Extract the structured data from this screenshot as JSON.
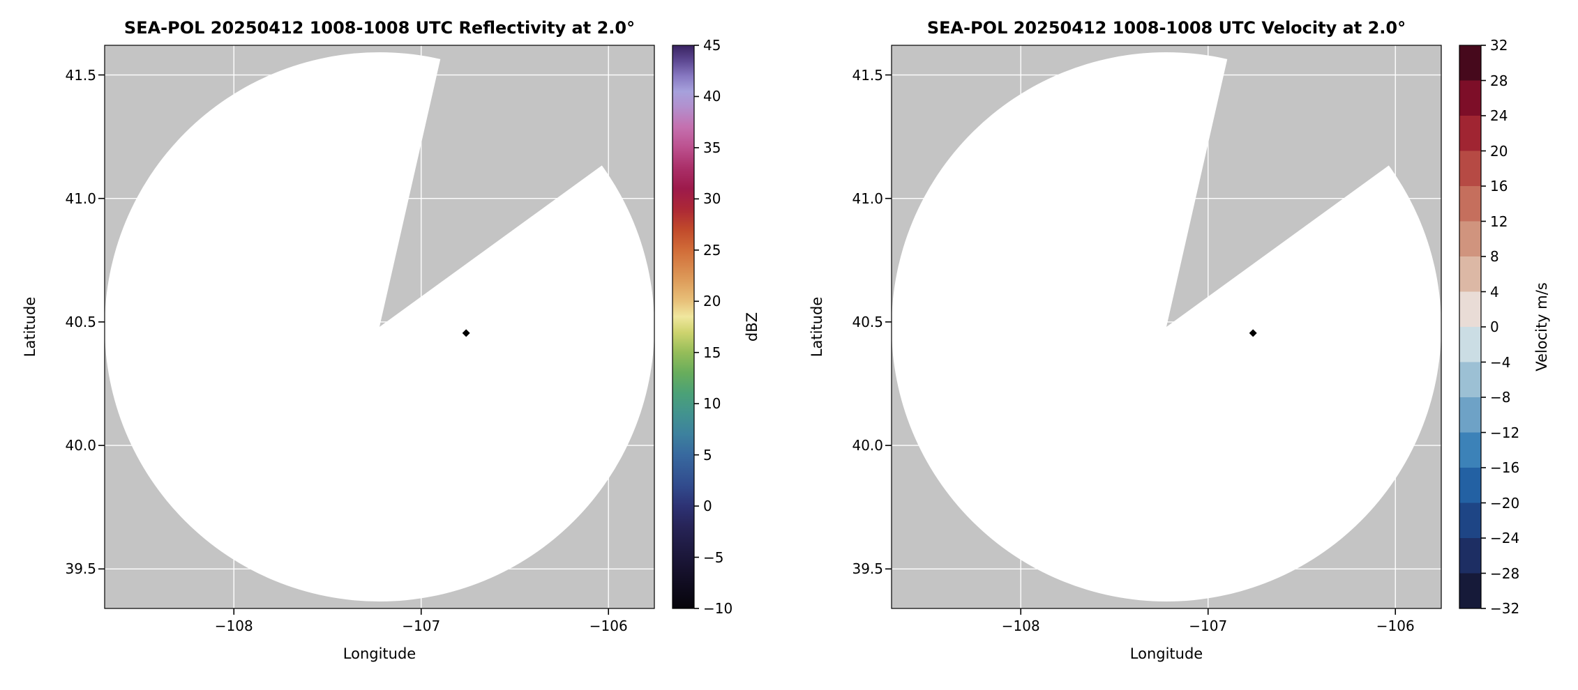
{
  "figure": {
    "background": "#ffffff"
  },
  "chart_data": [
    {
      "type": "heatmap",
      "variant": "radar-ppi",
      "title": "SEA-POL 20250412 1008-1008 UTC Reflectivity at 2.0°",
      "xlabel": "Longitude",
      "ylabel": "Latitude",
      "xlim": [
        -108.69,
        -105.755
      ],
      "ylim": [
        39.34,
        41.62
      ],
      "xticks": [
        -108,
        -107,
        -106
      ],
      "yticks": [
        41.5,
        41.0,
        40.5,
        40.0,
        39.5
      ],
      "grid": true,
      "values": "no echoes rendered - scan coverage area is blank (white)",
      "scan": {
        "center_lon": -107.2225,
        "center_lat": 40.48,
        "radius_deg_lon": 1.4675,
        "missing_sector_azimuth_deg": [
          12.8,
          54.0
        ],
        "no_data_color": "#c4c4c4",
        "scan_area_color": "#ffffff"
      },
      "marker": {
        "lon": -106.76,
        "lat": 40.455,
        "color": "#000000",
        "shape": "diamond"
      },
      "colors": {
        "grid": "#ffffff",
        "ticks": "#000000"
      },
      "colorbar": {
        "label": "dBZ",
        "vmin": -10,
        "vmax": 45,
        "ticks": [
          -10,
          -5,
          0,
          5,
          10,
          15,
          20,
          25,
          30,
          35,
          40,
          45
        ],
        "style": "gradient",
        "stops": [
          {
            "v": -10,
            "c": "#06040a"
          },
          {
            "v": -6,
            "c": "#17122f"
          },
          {
            "v": -2,
            "c": "#272457"
          },
          {
            "v": 0,
            "c": "#2d3274"
          },
          {
            "v": 2,
            "c": "#314b8d"
          },
          {
            "v": 5,
            "c": "#38699f"
          },
          {
            "v": 7,
            "c": "#3d819e"
          },
          {
            "v": 9,
            "c": "#42938f"
          },
          {
            "v": 11,
            "c": "#4ba177"
          },
          {
            "v": 13,
            "c": "#68ad5c"
          },
          {
            "v": 15,
            "c": "#95bd59"
          },
          {
            "v": 17,
            "c": "#cfd46f"
          },
          {
            "v": 18.5,
            "c": "#f0e79e"
          },
          {
            "v": 20,
            "c": "#e8c17a"
          },
          {
            "v": 22,
            "c": "#de9d5b"
          },
          {
            "v": 25,
            "c": "#d16c38"
          },
          {
            "v": 27,
            "c": "#c14a2b"
          },
          {
            "v": 29,
            "c": "#ac2836"
          },
          {
            "v": 31,
            "c": "#9d1a4b"
          },
          {
            "v": 33,
            "c": "#aa2f68"
          },
          {
            "v": 35,
            "c": "#bc508e"
          },
          {
            "v": 37,
            "c": "#c470af"
          },
          {
            "v": 39,
            "c": "#b290ce"
          },
          {
            "v": 40.5,
            "c": "#a6a1dc"
          },
          {
            "v": 42,
            "c": "#8778c1"
          },
          {
            "v": 43.5,
            "c": "#5d4892"
          },
          {
            "v": 45,
            "c": "#392361"
          }
        ]
      }
    },
    {
      "type": "heatmap",
      "variant": "radar-ppi",
      "title": "SEA-POL 20250412 1008-1008 UTC Velocity at 2.0°",
      "xlabel": "Longitude",
      "ylabel": "Latitude",
      "xlim": [
        -108.69,
        -105.755
      ],
      "ylim": [
        39.34,
        41.62
      ],
      "xticks": [
        -108,
        -107,
        -106
      ],
      "yticks": [
        41.5,
        41.0,
        40.5,
        40.0,
        39.5
      ],
      "grid": true,
      "values": "no echoes rendered - scan coverage area is blank (white)",
      "scan": {
        "center_lon": -107.2225,
        "center_lat": 40.48,
        "radius_deg_lon": 1.4675,
        "missing_sector_azimuth_deg": [
          12.8,
          54.0
        ],
        "no_data_color": "#c4c4c4",
        "scan_area_color": "#ffffff"
      },
      "marker": {
        "lon": -106.76,
        "lat": 40.455,
        "color": "#000000",
        "shape": "diamond"
      },
      "colors": {
        "grid": "#ffffff",
        "ticks": "#000000"
      },
      "colorbar": {
        "label": "Velocity m/s",
        "vmin": -32,
        "vmax": 32,
        "ticks": [
          -32,
          -28,
          -24,
          -20,
          -16,
          -12,
          -8,
          -4,
          0,
          4,
          8,
          12,
          16,
          20,
          24,
          28,
          32
        ],
        "style": "segments",
        "segments": [
          {
            "from": -32,
            "to": -28,
            "color": "#161a39"
          },
          {
            "from": -28,
            "to": -24,
            "color": "#1d2e63"
          },
          {
            "from": -24,
            "to": -20,
            "color": "#1e4585"
          },
          {
            "from": -20,
            "to": -16,
            "color": "#2361a3"
          },
          {
            "from": -16,
            "to": -12,
            "color": "#3c82b8"
          },
          {
            "from": -12,
            "to": -8,
            "color": "#6ea2c6"
          },
          {
            "from": -8,
            "to": -4,
            "color": "#9cc0d4"
          },
          {
            "from": -4,
            "to": 0,
            "color": "#cbdde4"
          },
          {
            "from": 0,
            "to": 4,
            "color": "#e9dcd6"
          },
          {
            "from": 4,
            "to": 8,
            "color": "#dcb8a5"
          },
          {
            "from": 8,
            "to": 12,
            "color": "#d0947e"
          },
          {
            "from": 12,
            "to": 16,
            "color": "#c56f5d"
          },
          {
            "from": 16,
            "to": 20,
            "color": "#b64a44"
          },
          {
            "from": 20,
            "to": 24,
            "color": "#a02532"
          },
          {
            "from": 24,
            "to": 28,
            "color": "#7d0e28"
          },
          {
            "from": 28,
            "to": 32,
            "color": "#46091c"
          }
        ]
      }
    }
  ]
}
